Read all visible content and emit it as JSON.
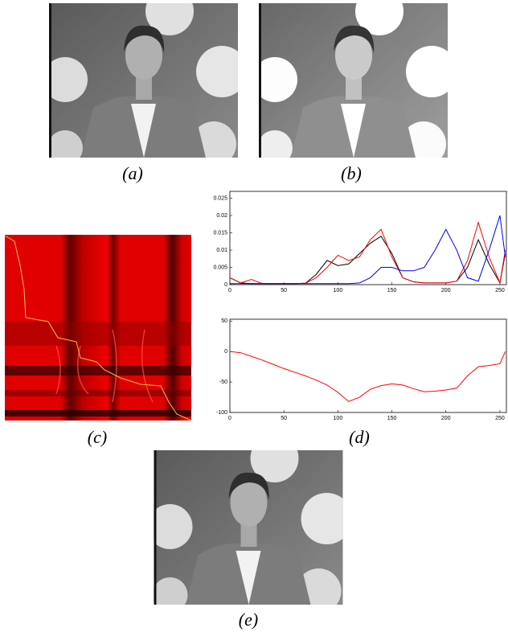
{
  "captions": {
    "a": "(a)",
    "b": "(b)",
    "c": "(c)",
    "d": "(d)",
    "e": "(e)"
  },
  "chart_data": [
    {
      "type": "line",
      "x": [
        0,
        10,
        20,
        30,
        40,
        50,
        60,
        70,
        80,
        90,
        100,
        110,
        120,
        130,
        140,
        150,
        160,
        170,
        180,
        190,
        200,
        210,
        220,
        230,
        240,
        250,
        255
      ],
      "series": [
        {
          "color": "#000000",
          "values": [
            0.002,
            0.0005,
            0.0003,
            0.0003,
            0.0003,
            0.0003,
            0.0003,
            0.0004,
            0.003,
            0.007,
            0.0055,
            0.006,
            0.009,
            0.012,
            0.014,
            0.009,
            0.002,
            0.0008,
            0.0005,
            0.0005,
            0.0005,
            0.001,
            0.005,
            0.013,
            0.006,
            0.0005,
            0.009
          ]
        },
        {
          "color": "#ff0000",
          "values": [
            0.002,
            0.0005,
            0.0015,
            0.0003,
            0.0003,
            0.0003,
            0.0003,
            0.0004,
            0.002,
            0.005,
            0.0085,
            0.007,
            0.008,
            0.013,
            0.016,
            0.008,
            0.002,
            0.0008,
            0.0005,
            0.0005,
            0.0005,
            0.001,
            0.007,
            0.018,
            0.008,
            0.0005,
            0.01
          ]
        },
        {
          "color": "#0000ff",
          "values": [
            0.0003,
            0.0003,
            0.0003,
            0.0003,
            0.0003,
            0.0003,
            0.0003,
            0.0003,
            0.0003,
            0.0003,
            0.0003,
            0.0003,
            0.0005,
            0.002,
            0.005,
            0.005,
            0.004,
            0.004,
            0.005,
            0.01,
            0.016,
            0.01,
            0.002,
            0.001,
            0.01,
            0.02,
            0.008
          ]
        }
      ],
      "xlim": [
        0,
        256
      ],
      "xticks": [
        0,
        50,
        100,
        150,
        200,
        250
      ],
      "ylim": [
        0,
        0.027
      ],
      "yticks": [
        0,
        0.005,
        0.01,
        0.015,
        0.02,
        0.025
      ]
    },
    {
      "type": "line",
      "x": [
        0,
        10,
        20,
        30,
        40,
        50,
        60,
        70,
        80,
        90,
        100,
        110,
        120,
        130,
        140,
        150,
        160,
        170,
        180,
        190,
        200,
        210,
        220,
        230,
        240,
        250,
        255
      ],
      "series": [
        {
          "color": "#ff0000",
          "values": [
            0,
            -2,
            -8,
            -14,
            -21,
            -28,
            -34,
            -40,
            -47,
            -55,
            -67,
            -82,
            -75,
            -62,
            -56,
            -53,
            -55,
            -61,
            -66,
            -65,
            -63,
            -60,
            -40,
            -25,
            -23,
            -20,
            0
          ]
        }
      ],
      "xlim": [
        0,
        256
      ],
      "xticks": [
        0,
        50,
        100,
        150,
        200,
        250
      ],
      "ylim": [
        -100,
        53
      ],
      "yticks": [
        -100,
        -50,
        0,
        50
      ]
    }
  ]
}
